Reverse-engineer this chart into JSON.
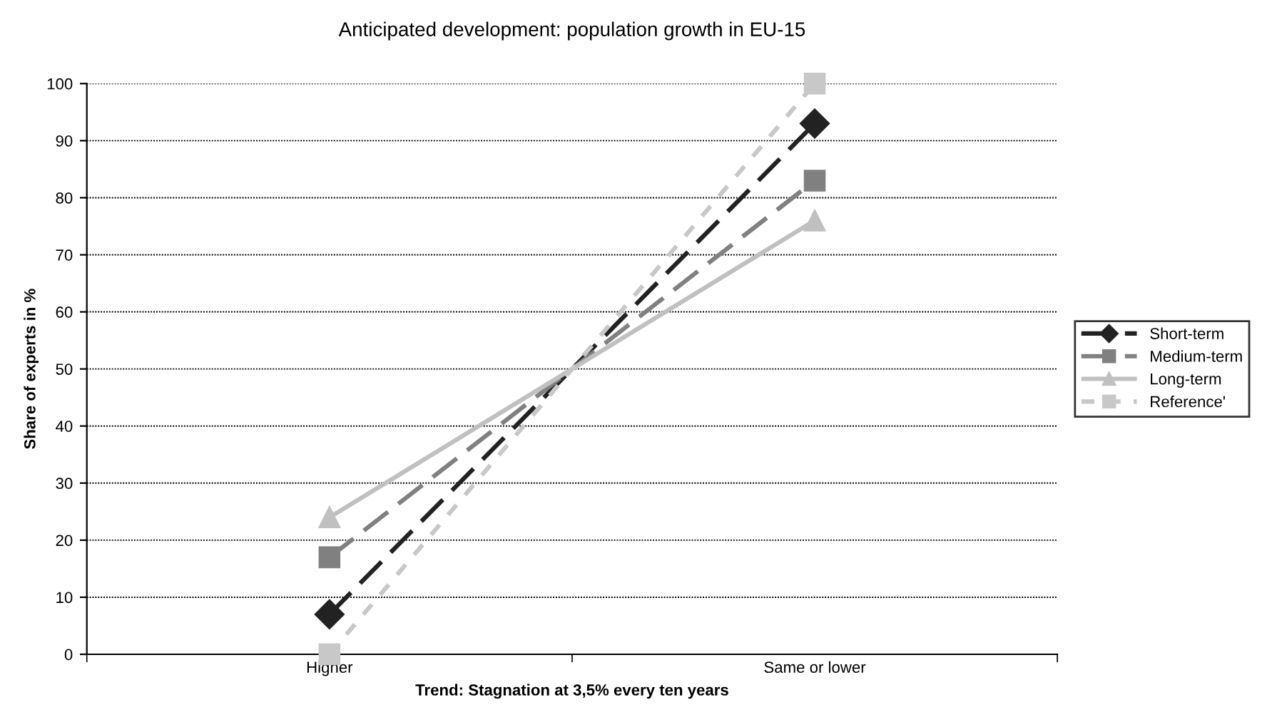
{
  "chart_data": {
    "type": "line",
    "title": "Anticipated development: population growth in EU-15",
    "xlabel": "Trend: Stagnation at 3,5% every ten years",
    "ylabel": "Share of experts in %",
    "categories": [
      "Higher",
      "Same or lower"
    ],
    "series": [
      {
        "name": "Short-term",
        "color": "#222222",
        "values": [
          7,
          93
        ],
        "marker": "diamond",
        "line_style": "dashed"
      },
      {
        "name": "Medium-term",
        "color": "#808080",
        "values": [
          17,
          83
        ],
        "marker": "square",
        "line_style": "dashed"
      },
      {
        "name": "Long-term",
        "color": "#c0c0c0",
        "values": [
          24,
          76
        ],
        "marker": "triangle",
        "line_style": "solid"
      },
      {
        "name": "Reference'",
        "color": "#c8c8c8",
        "values": [
          0,
          100
        ],
        "marker": "square",
        "line_style": "dotted"
      }
    ],
    "ylim": [
      0,
      100
    ],
    "yticks": [
      0,
      10,
      20,
      30,
      40,
      50,
      60,
      70,
      80,
      90,
      100
    ],
    "grid": "y",
    "legend": "right"
  }
}
